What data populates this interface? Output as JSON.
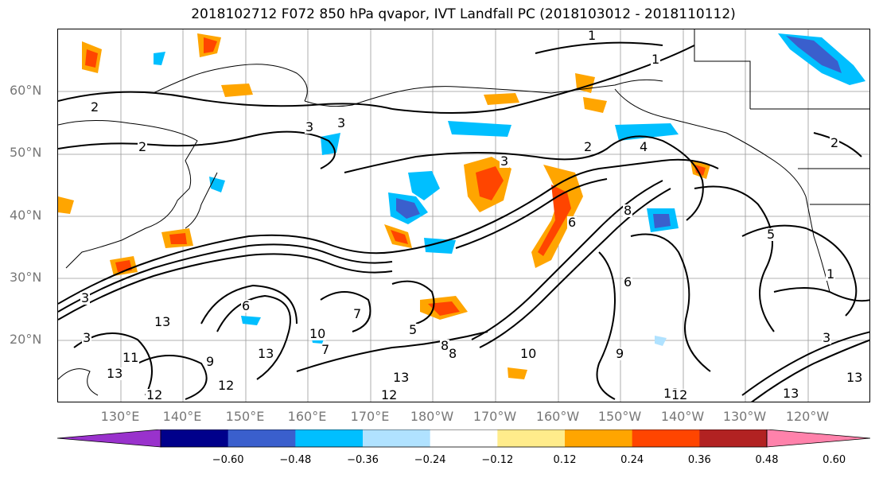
{
  "title": "2018102712 F072 850 hPa qvapor, IVT Landfall PC (2018103012 - 2018110112)",
  "lat_labels": [
    "60°N",
    "50°N",
    "40°N",
    "30°N",
    "20°N"
  ],
  "lon_labels": [
    "130°E",
    "140°E",
    "150°E",
    "160°E",
    "170°E",
    "180°W",
    "170°W",
    "160°W",
    "150°W",
    "140°W",
    "130°W",
    "120°W"
  ],
  "colorbar": {
    "colors": [
      "#9932cc",
      "#00008b",
      "#3a5fcd",
      "#00bfff",
      "#b0e2ff",
      "#ffffff",
      "#ffec8b",
      "#ffa500",
      "#ff4500",
      "#b22222",
      "#ff82ab"
    ],
    "ticks": [
      "−0.60",
      "−0.48",
      "−0.36",
      "−0.24",
      "−0.12",
      "0.12",
      "0.24",
      "0.36",
      "0.48",
      "0.60"
    ]
  },
  "contour_labels": [
    "1",
    "2",
    "2",
    "3",
    "2",
    "3",
    "4",
    "2",
    "3",
    "3",
    "6",
    "7",
    "3",
    "13",
    "6",
    "10",
    "7",
    "13",
    "5",
    "8",
    "8",
    "9",
    "13",
    "12",
    "13",
    "12",
    "12",
    "11",
    "13",
    "12",
    "13",
    "3",
    "1",
    "1",
    "5",
    "13",
    "6",
    "8",
    "9",
    "10"
  ]
}
